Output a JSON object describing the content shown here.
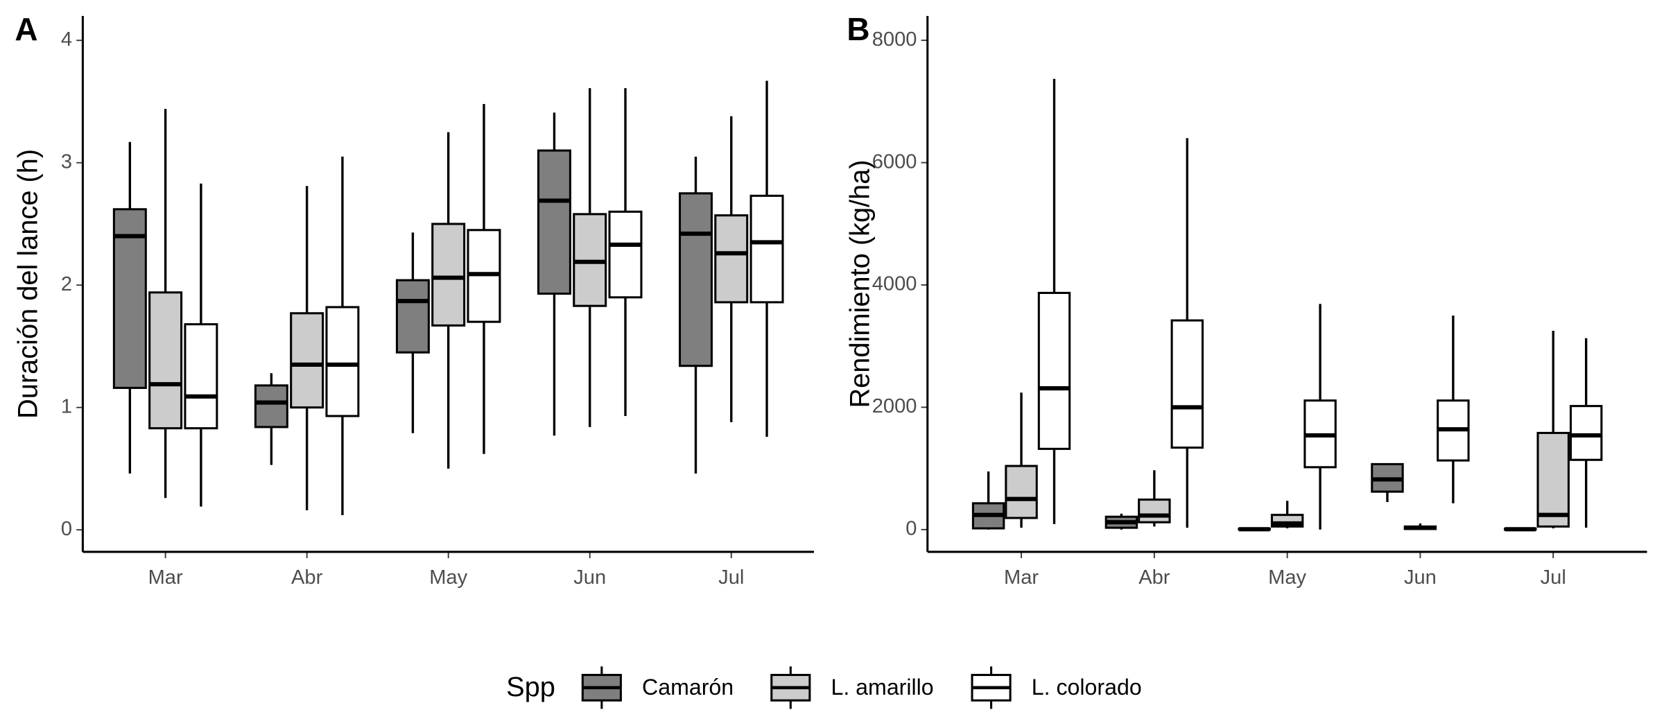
{
  "chart_data": [
    {
      "type": "box",
      "panel": "A",
      "y_label": "Duración del lance (h)",
      "categories": [
        "Mar",
        "Abr",
        "May",
        "Jun",
        "Jul"
      ],
      "ylim": [
        -0.18,
        4.2
      ],
      "yticks": [
        0,
        1,
        2,
        3,
        4
      ],
      "series": [
        {
          "name": "Camarón",
          "color": "#7f7f7f",
          "values": [
            {
              "min": 0.46,
              "q1": 1.16,
              "median": 2.4,
              "q3": 2.62,
              "max": 3.17
            },
            {
              "min": 0.53,
              "q1": 0.84,
              "median": 1.04,
              "q3": 1.18,
              "max": 1.28
            },
            {
              "min": 0.79,
              "q1": 1.45,
              "median": 1.87,
              "q3": 2.04,
              "max": 2.43
            },
            {
              "min": 0.77,
              "q1": 1.93,
              "median": 2.69,
              "q3": 3.1,
              "max": 3.41
            },
            {
              "min": 0.46,
              "q1": 1.34,
              "median": 2.42,
              "q3": 2.75,
              "max": 3.05
            }
          ]
        },
        {
          "name": "L. amarillo",
          "color": "#cccccc",
          "values": [
            {
              "min": 0.26,
              "q1": 0.83,
              "median": 1.19,
              "q3": 1.94,
              "max": 3.44
            },
            {
              "min": 0.16,
              "q1": 1.0,
              "median": 1.35,
              "q3": 1.77,
              "max": 2.81
            },
            {
              "min": 0.5,
              "q1": 1.67,
              "median": 2.06,
              "q3": 2.5,
              "max": 3.25
            },
            {
              "min": 0.84,
              "q1": 1.83,
              "median": 2.19,
              "q3": 2.58,
              "max": 3.61
            },
            {
              "min": 0.88,
              "q1": 1.86,
              "median": 2.26,
              "q3": 2.57,
              "max": 3.38
            }
          ]
        },
        {
          "name": "L. colorado",
          "color": "#ffffff",
          "values": [
            {
              "min": 0.19,
              "q1": 0.83,
              "median": 1.09,
              "q3": 1.68,
              "max": 2.83
            },
            {
              "min": 0.12,
              "q1": 0.93,
              "median": 1.35,
              "q3": 1.82,
              "max": 3.05
            },
            {
              "min": 0.62,
              "q1": 1.7,
              "median": 2.09,
              "q3": 2.45,
              "max": 3.48
            },
            {
              "min": 0.93,
              "q1": 1.9,
              "median": 2.33,
              "q3": 2.6,
              "max": 3.61
            },
            {
              "min": 0.76,
              "q1": 1.86,
              "median": 2.35,
              "q3": 2.73,
              "max": 3.67
            }
          ]
        }
      ]
    },
    {
      "type": "box",
      "panel": "B",
      "y_label": "Rendimiento (kg/ha)",
      "categories": [
        "Mar",
        "Abr",
        "May",
        "Jun",
        "Jul"
      ],
      "ylim": [
        -364,
        8399
      ],
      "yticks": [
        0,
        2000,
        4000,
        6000,
        8000
      ],
      "series": [
        {
          "name": "Camarón",
          "color": "#7f7f7f",
          "values": [
            {
              "min": 0,
              "q1": 20,
              "median": 240,
              "q3": 430,
              "max": 950
            },
            {
              "min": 0,
              "q1": 30,
              "median": 120,
              "q3": 210,
              "max": 260
            },
            {
              "min": 0,
              "q1": 0,
              "median": 5,
              "q3": 15,
              "max": 30
            },
            {
              "min": 450,
              "q1": 620,
              "median": 820,
              "q3": 1070,
              "max": 1070
            },
            {
              "min": 0,
              "q1": 0,
              "median": 5,
              "q3": 15,
              "max": 30
            }
          ]
        },
        {
          "name": "L. amarillo",
          "color": "#cccccc",
          "values": [
            {
              "min": 30,
              "q1": 190,
              "median": 500,
              "q3": 1040,
              "max": 2240
            },
            {
              "min": 50,
              "q1": 120,
              "median": 230,
              "q3": 490,
              "max": 970
            },
            {
              "min": 20,
              "q1": 50,
              "median": 100,
              "q3": 240,
              "max": 470
            },
            {
              "min": 0,
              "q1": 10,
              "median": 30,
              "q3": 50,
              "max": 100
            },
            {
              "min": 20,
              "q1": 50,
              "median": 240,
              "q3": 1580,
              "max": 3250
            }
          ]
        },
        {
          "name": "L. colorado",
          "color": "#ffffff",
          "values": [
            {
              "min": 90,
              "q1": 1320,
              "median": 2310,
              "q3": 3870,
              "max": 7370
            },
            {
              "min": 30,
              "q1": 1340,
              "median": 2000,
              "q3": 3420,
              "max": 6400
            },
            {
              "min": 0,
              "q1": 1020,
              "median": 1540,
              "q3": 2110,
              "max": 3690
            },
            {
              "min": 430,
              "q1": 1130,
              "median": 1640,
              "q3": 2110,
              "max": 3500
            },
            {
              "min": 30,
              "q1": 1140,
              "median": 1540,
              "q3": 2020,
              "max": 3130
            }
          ]
        }
      ]
    }
  ],
  "legend": {
    "title": "Spp"
  }
}
